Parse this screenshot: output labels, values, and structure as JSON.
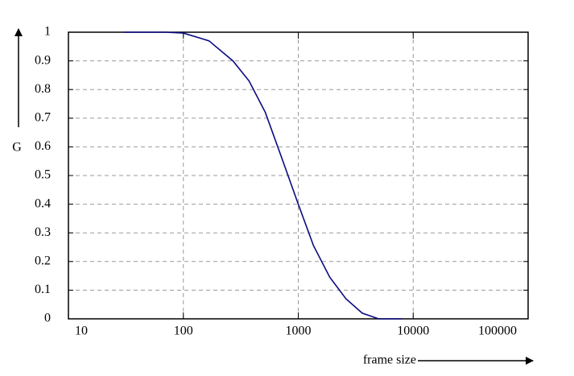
{
  "chart_data": {
    "type": "line",
    "xlabel": "frame size",
    "ylabel": "G",
    "x": [
      30,
      50,
      70,
      100,
      167,
      270,
      373,
      517,
      713,
      1000,
      1358,
      1880,
      2600,
      3600,
      5000,
      8000
    ],
    "series": [
      {
        "color": "#0a0a80",
        "values": [
          1.0,
          1.0,
          1.0,
          0.997,
          0.97,
          0.9,
          0.83,
          0.72,
          0.565,
          0.4,
          0.255,
          0.145,
          0.07,
          0.02,
          0.0,
          0.0
        ]
      }
    ],
    "xlim": [
      10,
      100000
    ],
    "xticks": [
      10,
      100,
      1000,
      10000,
      100000
    ],
    "xscale": "log",
    "ylim": [
      0,
      1
    ],
    "yticks": [
      0,
      0.1,
      0.2,
      0.3,
      0.4,
      0.5,
      0.6,
      0.7,
      0.8,
      0.9,
      1
    ],
    "grid": true
  }
}
